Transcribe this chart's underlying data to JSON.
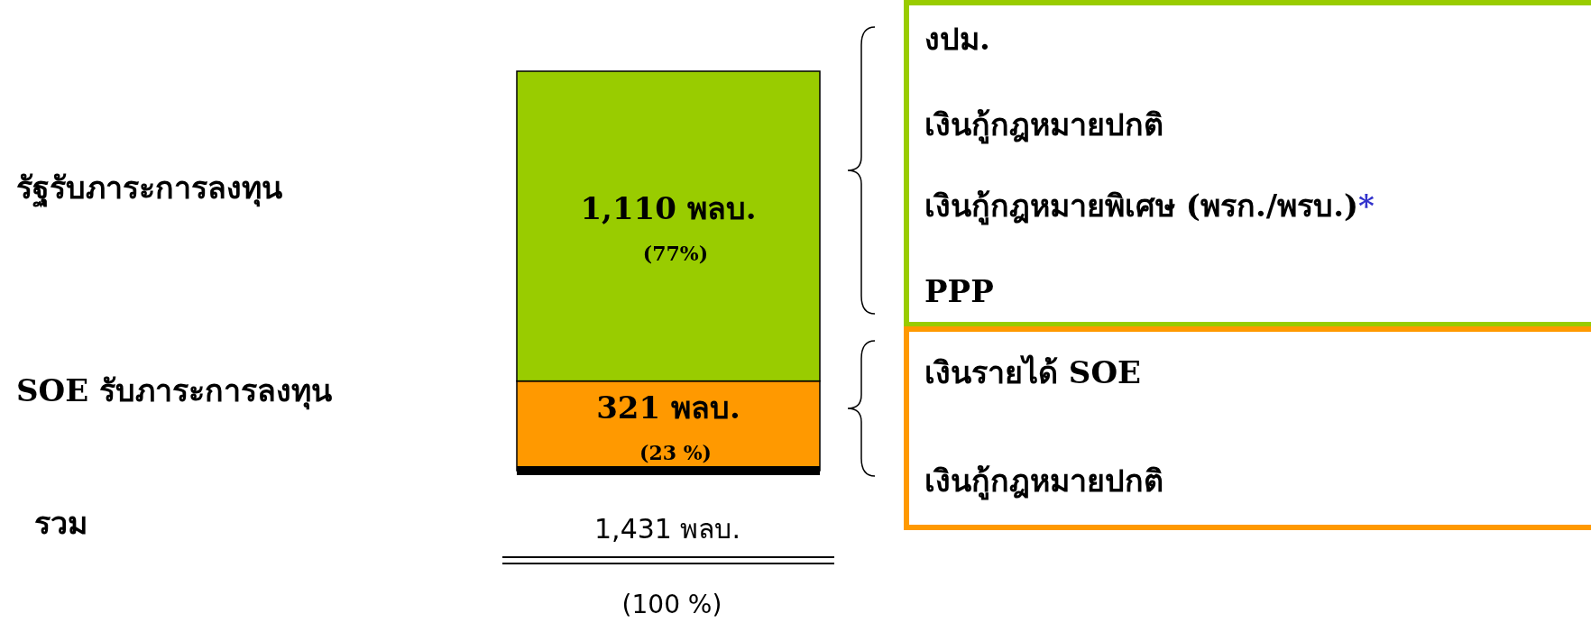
{
  "chart_data": {
    "type": "bar",
    "stacked": true,
    "categories": [
      null
    ],
    "series": [
      {
        "color": "#ff9900",
        "values": [
          321
        ],
        "value_labels": [
          "321 พลบ. (23 %)"
        ]
      },
      {
        "color": "#99cc00",
        "values": [
          1110
        ],
        "value_labels": [
          "1,110 พลบ. (77%)"
        ]
      }
    ],
    "ref_lines": [
      {
        "axis": "y",
        "value": 0,
        "color": "#000000"
      }
    ],
    "totals": [
      "1,431 พลบ. (100 %)"
    ],
    "annotations": [
      "รัฐรับภาระการลงทุน",
      "SOE รับภาระการลงทุน",
      "รวม",
      "งปม.",
      "เงินกู้กฎหมายปกติ",
      "เงินกู้กฎหมายพิเศษ (พรก./พรบ.)*",
      "PPP",
      "เงินรายได้ SOE",
      "เงินกู้กฎหมายปกติ"
    ]
  }
}
